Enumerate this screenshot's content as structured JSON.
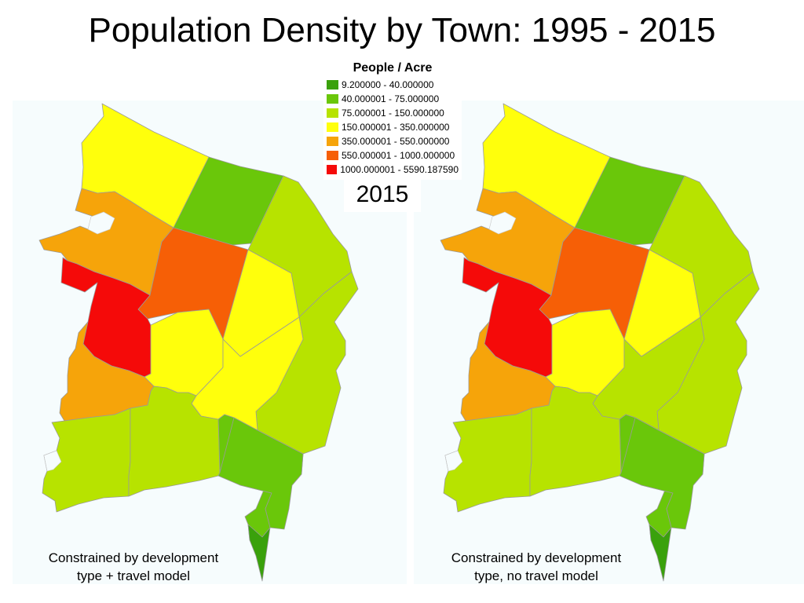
{
  "title": "Population Density by Town: 1995 - 2015",
  "legend": {
    "title": "People / Acre",
    "classes": [
      {
        "label": "9.200000 - 40.000000",
        "color": "#3aa10c"
      },
      {
        "label": "40.000001 - 75.000000",
        "color": "#6ac70a"
      },
      {
        "label": "75.000001 - 150.000000",
        "color": "#b7e300"
      },
      {
        "label": "150.000001 - 350.000000",
        "color": "#ffff0c"
      },
      {
        "label": "350.000001 - 550.000000",
        "color": "#f6a40a"
      },
      {
        "label": "550.000001 - 1000.000000",
        "color": "#f65f06"
      },
      {
        "label": "1000.000001 - 5590.187590",
        "color": "#f50a09"
      }
    ]
  },
  "year_label": "2015",
  "maps": [
    {
      "caption_line1": "Constrained by development",
      "caption_line2": "type + travel model",
      "town_classes": {
        "north": 3,
        "northcentral": 1,
        "northeast": 2,
        "west_mid": 4,
        "center": 5,
        "east_center": 3,
        "east": 2,
        "peninsula": 6,
        "south_center": 3,
        "south_east_center": 3,
        "southwest": 4,
        "southeast": 1,
        "bottom_left": 2,
        "bottom_right": 2,
        "south_tail": 1,
        "tip": 0
      }
    },
    {
      "caption_line1": "Constrained by development",
      "caption_line2": "type, no travel model",
      "town_classes": {
        "north": 3,
        "northcentral": 1,
        "northeast": 2,
        "west_mid": 4,
        "center": 5,
        "east_center": 3,
        "east": 2,
        "peninsula": 6,
        "south_center": 3,
        "south_east_center": 2,
        "southwest": 4,
        "southeast": 1,
        "bottom_left": 2,
        "bottom_right": 2,
        "south_tail": 1,
        "tip": 0
      }
    }
  ]
}
